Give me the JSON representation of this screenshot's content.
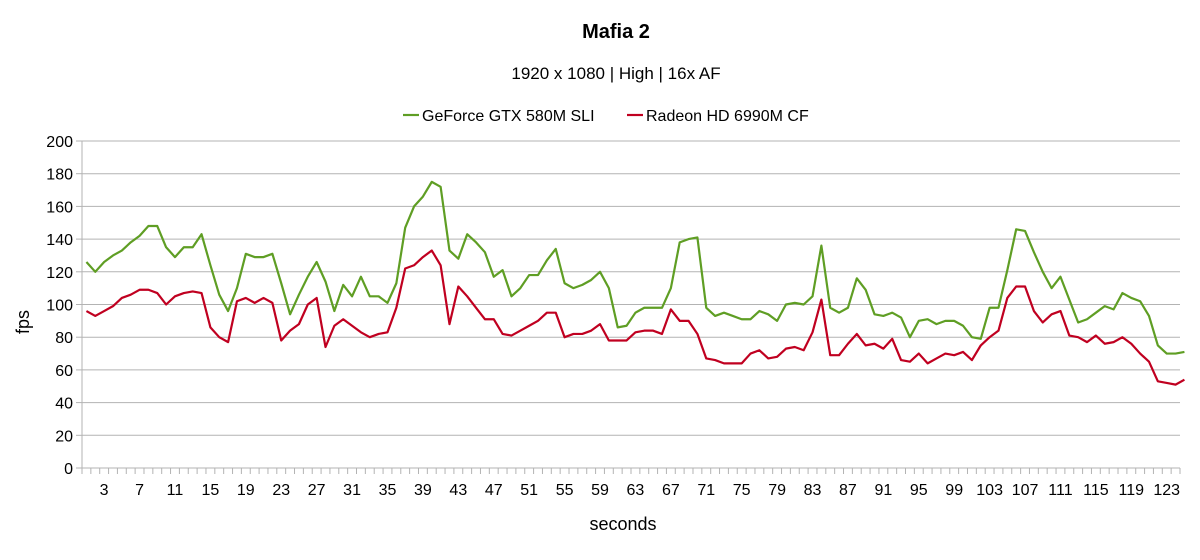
{
  "chart_data": {
    "type": "line",
    "title": "Mafia 2",
    "subtitle": "1920 x 1080 | High | 16x AF",
    "xlabel": "seconds",
    "ylabel": "fps",
    "ylim": [
      0,
      200
    ],
    "yticks": [
      "0",
      "20",
      "40",
      "60",
      "80",
      "100",
      "120",
      "140",
      "160",
      "180",
      "200"
    ],
    "xticks": [
      "3",
      "7",
      "11",
      "15",
      "19",
      "23",
      "27",
      "31",
      "35",
      "39",
      "43",
      "47",
      "51",
      "55",
      "59",
      "63",
      "67",
      "71",
      "75",
      "79",
      "83",
      "87",
      "91",
      "95",
      "99",
      "103",
      "107",
      "111",
      "115",
      "119",
      "123"
    ],
    "x_start": 1,
    "x_end": 124,
    "grid": true,
    "legend_position": "top",
    "series": [
      {
        "name": "GeForce GTX 580M SLI",
        "color": "#5f9e24",
        "values": [
          126,
          120,
          126,
          130,
          133,
          138,
          142,
          148,
          148,
          135,
          129,
          135,
          135,
          143,
          124,
          106,
          96,
          110,
          131,
          129,
          129,
          131,
          113,
          94,
          106,
          117,
          126,
          114,
          96,
          112,
          105,
          117,
          105,
          105,
          101,
          113,
          147,
          160,
          166,
          175,
          172,
          133,
          128,
          143,
          138,
          132,
          117,
          121,
          105,
          110,
          118,
          118,
          127,
          134,
          113,
          110,
          112,
          115,
          120,
          110,
          86,
          87,
          95,
          98,
          98,
          98,
          110,
          138,
          140,
          141,
          98,
          93,
          95,
          93,
          91,
          91,
          96,
          94,
          90,
          100,
          101,
          100,
          105,
          136,
          98,
          95,
          98,
          116,
          109,
          94,
          93,
          95,
          92,
          80,
          90,
          91,
          88,
          90,
          90,
          87,
          80,
          79,
          98,
          98,
          121,
          146,
          145,
          132,
          120,
          110,
          117,
          103,
          89,
          91,
          95,
          99,
          97,
          107,
          104,
          102,
          93,
          75,
          70,
          70,
          71
        ]
      },
      {
        "name": "Radeon HD 6990M CF",
        "color": "#c00020",
        "values": [
          96,
          93,
          96,
          99,
          104,
          106,
          109,
          109,
          107,
          100,
          105,
          107,
          108,
          107,
          86,
          80,
          77,
          102,
          104,
          101,
          104,
          101,
          78,
          84,
          88,
          100,
          104,
          74,
          87,
          91,
          87,
          83,
          80,
          82,
          83,
          98,
          122,
          124,
          129,
          133,
          124,
          88,
          111,
          105,
          98,
          91,
          91,
          82,
          81,
          84,
          87,
          90,
          95,
          95,
          80,
          82,
          82,
          84,
          88,
          78,
          78,
          78,
          83,
          84,
          84,
          82,
          97,
          90,
          90,
          82,
          67,
          66,
          64,
          64,
          64,
          70,
          72,
          67,
          68,
          73,
          74,
          72,
          83,
          103,
          69,
          69,
          76,
          82,
          75,
          76,
          73,
          79,
          66,
          65,
          70,
          64,
          67,
          70,
          69,
          71,
          66,
          75,
          80,
          84,
          104,
          111,
          111,
          96,
          89,
          94,
          96,
          81,
          80,
          77,
          81,
          76,
          77,
          80,
          76,
          70,
          65,
          53,
          52,
          51,
          54
        ]
      }
    ]
  }
}
